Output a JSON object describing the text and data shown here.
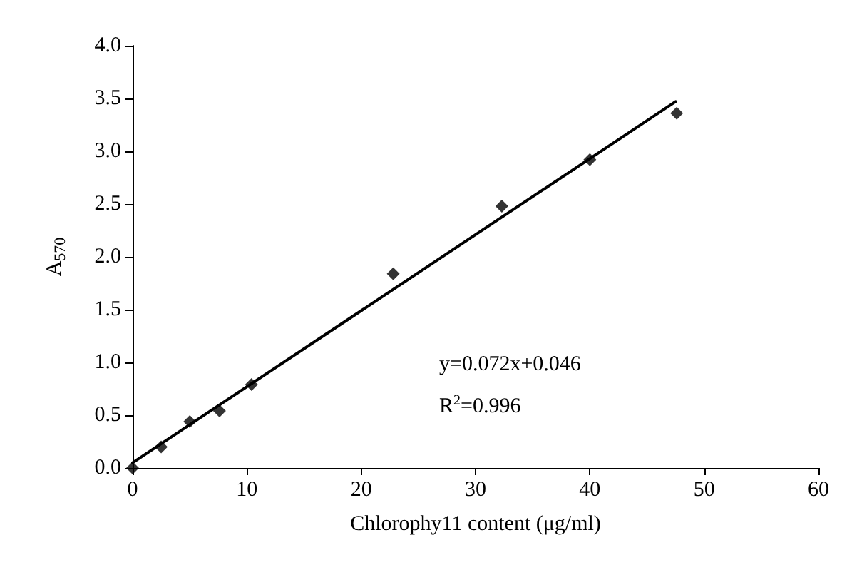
{
  "chart_data": {
    "type": "scatter",
    "xlabel": "Chlorophy11 content (μg/ml)",
    "ylabel": "A$_{570}$",
    "xlim": [
      0,
      60
    ],
    "xticks": [
      0,
      10,
      20,
      30,
      40,
      50,
      60
    ],
    "ylim": [
      0,
      4
    ],
    "yticks": [
      {
        "value": 0,
        "label": "0.0"
      },
      {
        "value": 0.5,
        "label": "0.5"
      },
      {
        "value": 1,
        "label": "1.0"
      },
      {
        "value": 1.5,
        "label": "1.5"
      },
      {
        "value": 2,
        "label": "2.0"
      },
      {
        "value": 2.5,
        "label": "2.5"
      },
      {
        "value": 3,
        "label": "3.0"
      },
      {
        "value": 3.5,
        "label": "3.5"
      },
      {
        "value": 4,
        "label": "4.0"
      }
    ],
    "grid": false,
    "annotations": [
      "y=0.072x+0.046",
      "R$^{2}$=0.996"
    ],
    "series": [
      {
        "type": "scatter",
        "marker": "diamond",
        "color": "#000000",
        "x": [
          0,
          2.5,
          5,
          7.6,
          10.4,
          22.8,
          32.3,
          40,
          47.6
        ],
        "values": [
          0,
          0.2,
          0.44,
          0.54,
          0.79,
          1.84,
          2.48,
          2.92,
          3.36
        ]
      },
      {
        "type": "line",
        "marker": "none",
        "color": "#000000",
        "x": [
          0,
          47.5
        ],
        "values": [
          0.05,
          3.47
        ]
      }
    ]
  }
}
